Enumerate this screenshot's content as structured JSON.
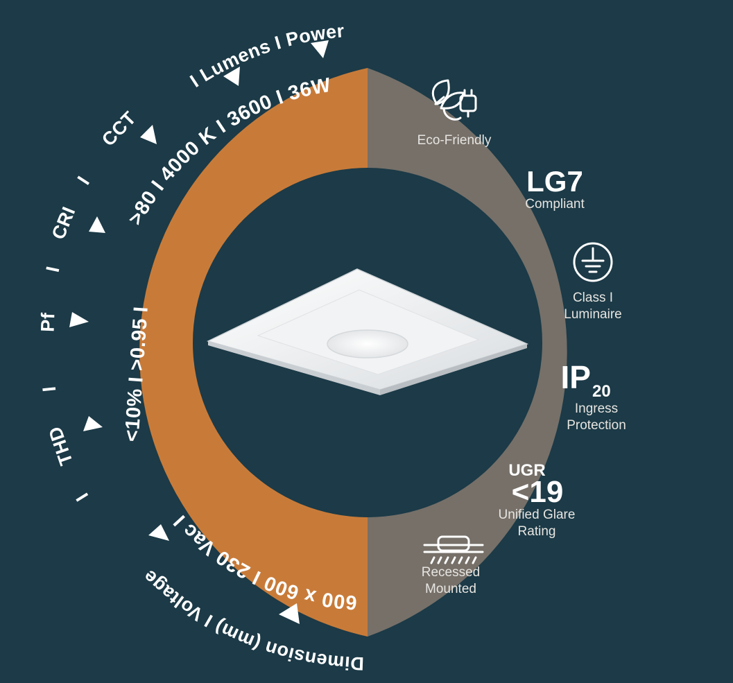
{
  "outer_ring": {
    "top_arc": "I Lumens  I  Power",
    "cct": "CCT",
    "sep1": "I",
    "cri": "CRI",
    "sep2": "I",
    "pf": "Pf",
    "sep3": "I",
    "thd": "THD",
    "sep4": "I",
    "bottom_arc": "Dimension (mm)  I  Voltage"
  },
  "specs": {
    "upper_arc": ">80  I  4000 K  I  3600  I  36W",
    "left_arc": "<10%  I  >0.95  I",
    "bottom_arc": "600 x 600  I  230 Vac  I"
  },
  "features": {
    "eco_label": "Eco-Friendly",
    "lg7_title": "LG7",
    "lg7_sub": "Compliant",
    "class_line1": "Class I",
    "class_line2": "Luminaire",
    "ip_main": "IP",
    "ip_sub": "20",
    "ip_line1": "Ingress",
    "ip_line2": "Protection",
    "ugr_label": "UGR",
    "ugr_value": "<19",
    "ugr_line1": "Unified Glare",
    "ugr_line2": "Rating",
    "recessed_line1": "Recessed",
    "recessed_line2": "Mounted"
  },
  "colors": {
    "background": "#1c3a47",
    "orange": "#c87b39",
    "grey": "#767069",
    "center": "#1c3a47",
    "white": "#ffffff"
  },
  "icons": [
    "eco-leaf-plug-icon",
    "ground-symbol-icon",
    "recessed-mount-icon",
    "pointer-triangle-icon"
  ]
}
